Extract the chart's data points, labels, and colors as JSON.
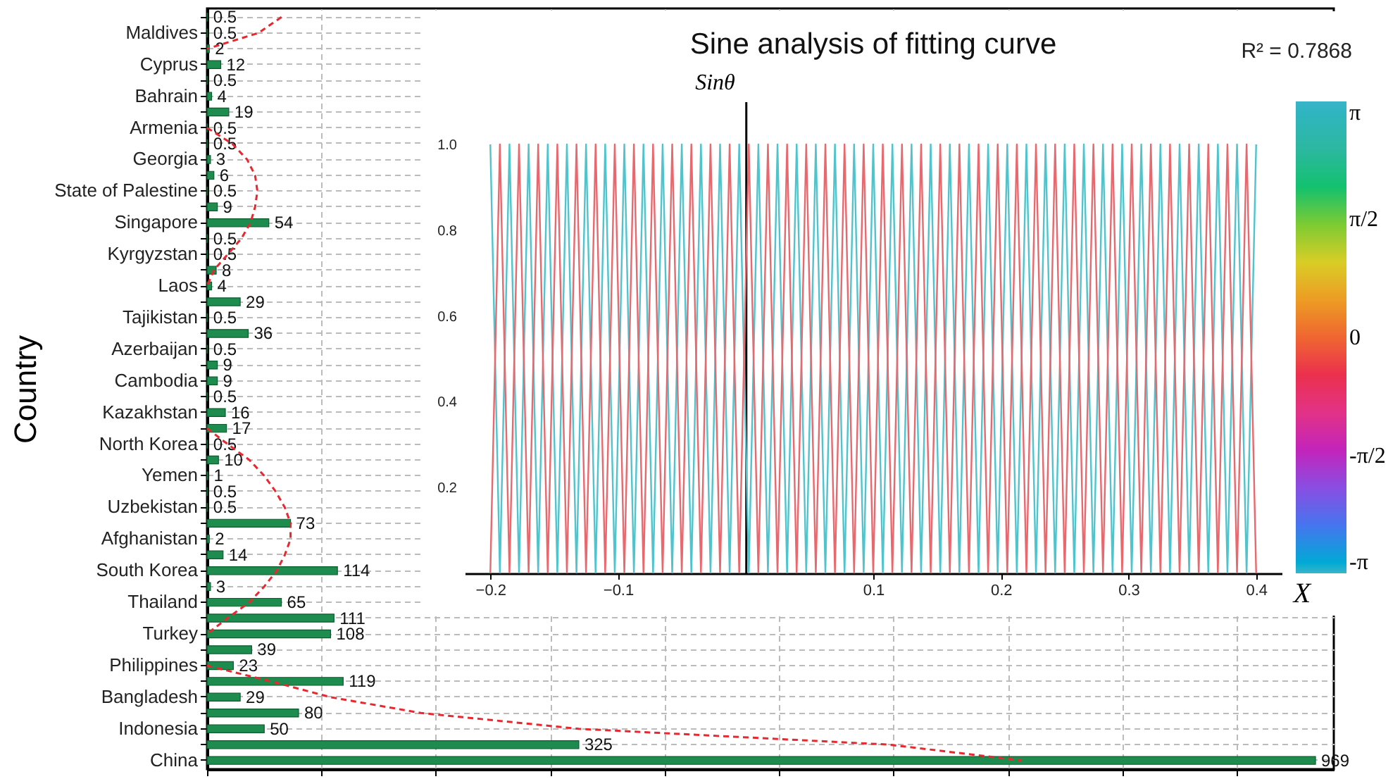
{
  "chart_data": [
    {
      "type": "bar",
      "orientation": "horizontal",
      "ylabel": "Country",
      "categories": [
        null,
        "Maldives",
        null,
        "Cyprus",
        null,
        "Bahrain",
        null,
        "Armenia",
        null,
        "Georgia",
        null,
        "State of Palestine",
        null,
        "Singapore",
        null,
        "Kyrgyzstan",
        null,
        "Laos",
        null,
        "Tajikistan",
        null,
        "Azerbaijan",
        null,
        "Cambodia",
        null,
        "Kazakhstan",
        null,
        "North Korea",
        null,
        "Yemen",
        null,
        "Uzbekistan",
        null,
        "Afghanistan",
        null,
        "South Korea",
        null,
        "Thailand",
        null,
        "Turkey",
        null,
        "Philippines",
        null,
        "Bangladesh",
        null,
        "Indonesia",
        null,
        "China"
      ],
      "series": [
        {
          "type": "bar",
          "color": "#1e8c4e",
          "values": [
            0.5,
            0.5,
            2,
            12,
            0.5,
            4,
            19,
            0.5,
            0.5,
            3,
            6,
            0.5,
            9,
            54,
            0.5,
            0.5,
            8,
            4,
            29,
            0.5,
            36,
            0.5,
            9,
            9,
            0.5,
            16,
            17,
            0.5,
            10,
            1,
            0.5,
            0.5,
            73,
            2,
            14,
            114,
            3,
            65,
            111,
            108,
            39,
            23,
            119,
            29,
            80,
            50,
            325,
            969
          ],
          "value_labels": [
            "0.5",
            "0.5",
            "2",
            "12",
            "0.5",
            "4",
            "19",
            "0.5",
            "0.5",
            "3",
            "6",
            "0.5",
            "9",
            "54",
            "0.5",
            "0.5",
            "8",
            "4",
            "29",
            "0.5",
            "36",
            "0.5",
            "9",
            "9",
            "0.5",
            "16",
            "17",
            "0.5",
            "10",
            "1",
            "0.5",
            "0.5",
            "73",
            "2",
            "14",
            "114",
            "3",
            "65",
            "111",
            "108",
            "39",
            "23",
            "119",
            "29",
            "80",
            "50",
            "325",
            "969"
          ]
        },
        {
          "type": "line",
          "color": "#e8282e",
          "line_style": "dashed",
          "values": [
            65,
            45,
            0,
            null,
            null,
            null,
            null,
            0,
            22,
            35,
            42,
            44,
            42,
            38,
            30,
            18,
            6,
            0,
            null,
            null,
            null,
            null,
            null,
            null,
            null,
            null,
            0,
            18,
            37,
            50,
            60,
            68,
            73,
            73,
            68,
            61,
            50,
            37,
            18,
            0,
            null,
            0,
            56,
            108,
            187,
            325,
            596,
            712
          ]
        }
      ],
      "xlim": [
        0,
        985
      ],
      "xticks": [
        0,
        100,
        200,
        300,
        400,
        500,
        600,
        700,
        800,
        900
      ],
      "tick_labels": "y",
      "grid": true
    },
    {
      "type": "line",
      "title": "Sine analysis of fitting curve",
      "annotations": [
        "R² = 0.7868"
      ],
      "xlabel": "X",
      "ylabel": "Sinθ",
      "x": [
        -0.2,
        -0.1925,
        -0.185,
        -0.1775,
        -0.17,
        -0.1625,
        -0.155,
        -0.1475,
        -0.14,
        -0.1325,
        -0.125,
        -0.1175,
        -0.11,
        -0.1025,
        -0.095,
        -0.0875,
        -0.08,
        -0.0725,
        -0.065,
        -0.0575,
        -0.05,
        -0.0425,
        -0.035,
        -0.0275,
        -0.02,
        -0.0125,
        -0.005,
        0.0025,
        0.01,
        0.0175,
        0.025,
        0.0325,
        0.04,
        0.0475,
        0.055,
        0.0625,
        0.07,
        0.0775,
        0.085,
        0.0925,
        0.1,
        0.1075,
        0.115,
        0.1225,
        0.13,
        0.1375,
        0.145,
        0.1525,
        0.16,
        0.1675,
        0.175,
        0.1825,
        0.19,
        0.1975,
        0.205,
        0.2125,
        0.22,
        0.2275,
        0.235,
        0.2425,
        0.25,
        0.2575,
        0.265,
        0.2725,
        0.28,
        0.2875,
        0.295,
        0.3025,
        0.31,
        0.3175,
        0.325,
        0.3325,
        0.34,
        0.3475,
        0.355,
        0.3625,
        0.37,
        0.3775,
        0.385,
        0.3925,
        0.4
      ],
      "series": [
        {
          "color": "#4fc4cc",
          "values": [
            1,
            0,
            1,
            0,
            1,
            0,
            1,
            0,
            1,
            0,
            1,
            0,
            1,
            0,
            1,
            0,
            1,
            0,
            1,
            0,
            1,
            0,
            1,
            0,
            1,
            0,
            1,
            0,
            1,
            0,
            1,
            0,
            1,
            0,
            1,
            0,
            1,
            0,
            1,
            0,
            1,
            0,
            1,
            0,
            1,
            0,
            1,
            0,
            1,
            0,
            1,
            0,
            1,
            0,
            1,
            0,
            1,
            0,
            1,
            0,
            1,
            0,
            1,
            0,
            1,
            0,
            1,
            0,
            1,
            0,
            1,
            0,
            1,
            0,
            1,
            0,
            1,
            0,
            1,
            0,
            1
          ]
        },
        {
          "color": "#e8686e",
          "values": [
            0,
            1,
            0,
            1,
            0,
            1,
            0,
            1,
            0,
            1,
            0,
            1,
            0,
            1,
            0,
            1,
            0,
            1,
            0,
            1,
            0,
            1,
            0,
            1,
            0,
            1,
            0,
            1,
            0,
            1,
            0,
            1,
            0,
            1,
            0,
            1,
            0,
            1,
            0,
            1,
            0,
            1,
            0,
            1,
            0,
            1,
            0,
            1,
            0,
            1,
            0,
            1,
            0,
            1,
            0,
            1,
            0,
            1,
            0,
            1,
            0,
            1,
            0,
            1,
            0,
            1,
            0,
            1,
            0,
            1,
            0,
            1,
            0,
            1,
            0,
            1,
            0,
            1,
            0,
            1,
            0
          ]
        }
      ],
      "xlim": [
        -0.22,
        0.42
      ],
      "ylim": [
        0,
        1.1
      ],
      "xticks": [
        {
          "value": -0.2,
          "label": "−0.2"
        },
        {
          "value": -0.1,
          "label": "−0.1"
        },
        0.1,
        0.2,
        0.3,
        0.4
      ],
      "yticks": [
        0.2,
        0.4,
        0.6,
        0.8,
        {
          "value": 1,
          "label": "1.0"
        }
      ],
      "clim": [
        -3.14159,
        3.14159
      ],
      "cticks": [
        {
          "value": -3.14159,
          "label": "-π"
        },
        {
          "value": -1.5708,
          "label": "-π/2"
        },
        {
          "value": 0,
          "label": "0"
        },
        {
          "value": 1.5708,
          "label": "π/2"
        },
        {
          "value": 3.14159,
          "label": "π"
        }
      ]
    }
  ]
}
